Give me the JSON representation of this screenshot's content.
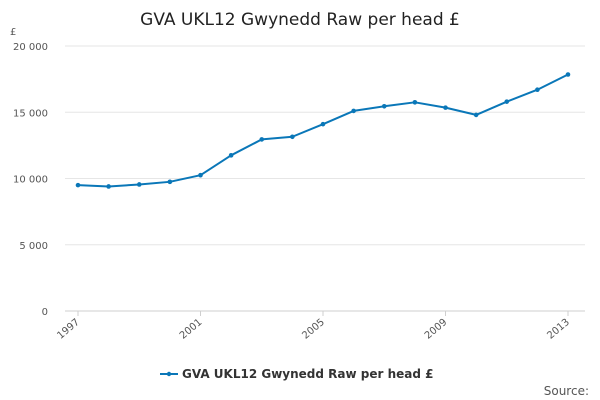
{
  "chart_data": {
    "type": "line",
    "title": "GVA UKL12 Gwynedd Raw per head £",
    "y_unit_label": "£",
    "x": [
      1997,
      1998,
      1999,
      2000,
      2001,
      2002,
      2003,
      2004,
      2005,
      2006,
      2007,
      2008,
      2009,
      2010,
      2011,
      2012,
      2013
    ],
    "x_tick_labels": [
      "1997",
      "2001",
      "2005",
      "2009",
      "2013"
    ],
    "y_tick_labels": [
      "0",
      "5 000",
      "10 000",
      "15 000",
      "20 000"
    ],
    "y_ticks": [
      0,
      5000,
      10000,
      15000,
      20000
    ],
    "ylim": [
      0,
      20000
    ],
    "grid": "horizontal",
    "legend_position": "bottom-center",
    "series": [
      {
        "name": "GVA UKL12 Gwynedd Raw per head £",
        "color": "#0a77b8",
        "values": [
          9500,
          9400,
          9550,
          9750,
          10250,
          11750,
          12950,
          13150,
          14100,
          15100,
          15450,
          15750,
          15350,
          14800,
          15800,
          16700,
          17850
        ]
      }
    ],
    "source_label": "Source:"
  }
}
